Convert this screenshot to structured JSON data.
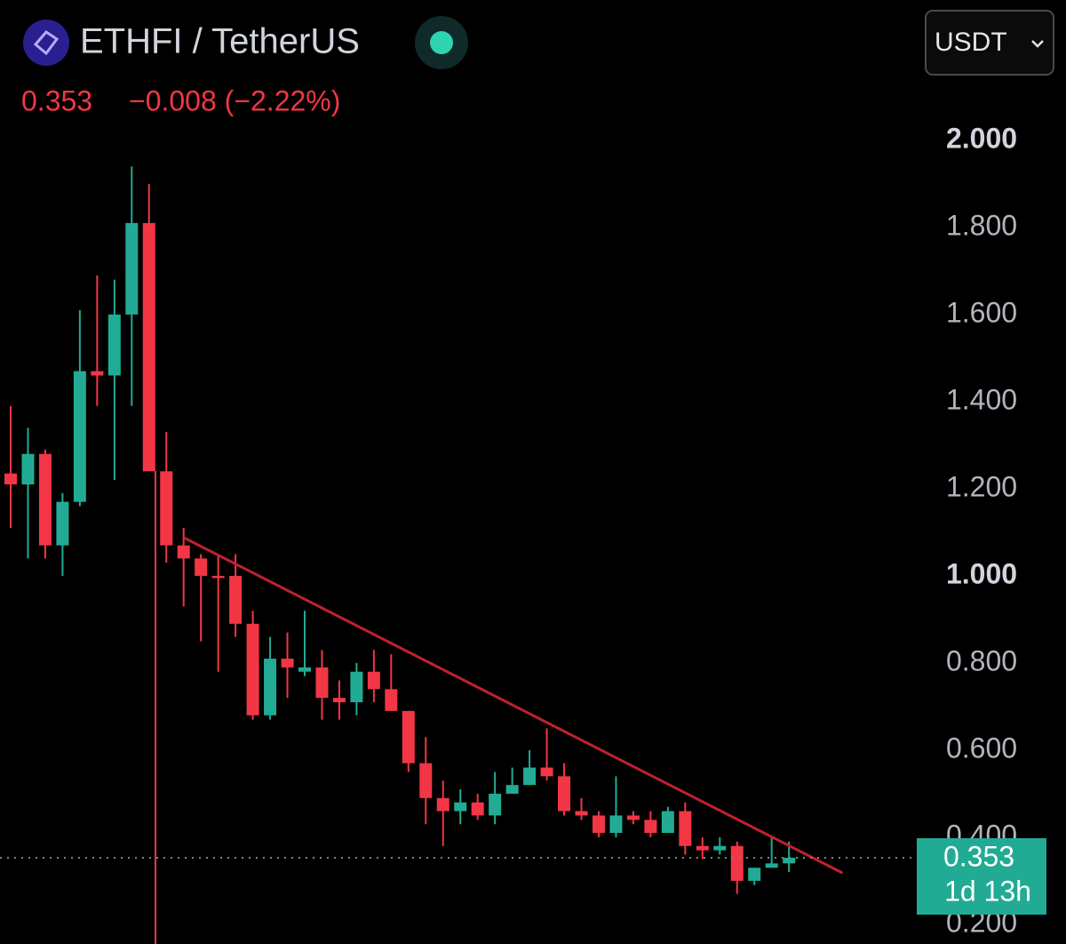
{
  "header": {
    "symbol": "ETHFI / TetherUS",
    "price": "0.353",
    "change": "−0.008 (−2.22%)",
    "currency": "USDT"
  },
  "chart_data": {
    "type": "candlestick",
    "up_color": "#22ab94",
    "down_color": "#f23645",
    "open": [
      1.235,
      1.21,
      1.28,
      1.07,
      1.17,
      1.47,
      1.46,
      1.6,
      1.81,
      1.24,
      1.07,
      1.04,
      1.0,
      1.0,
      0.89,
      0.68,
      0.81,
      0.78,
      0.79,
      0.72,
      0.71,
      0.78,
      0.74,
      0.69,
      0.57,
      0.49,
      0.46,
      0.48,
      0.45,
      0.5,
      0.52,
      0.56,
      0.54,
      0.46,
      0.45,
      0.41,
      0.45,
      0.44,
      0.41,
      0.46,
      0.38,
      0.37,
      0.38,
      0.3,
      0.33,
      0.34
    ],
    "high": [
      1.39,
      1.34,
      1.29,
      1.19,
      1.61,
      1.69,
      1.68,
      1.94,
      1.9,
      1.33,
      1.11,
      1.05,
      1.05,
      1.05,
      0.92,
      0.86,
      0.87,
      0.92,
      0.83,
      0.76,
      0.8,
      0.83,
      0.82,
      0.69,
      0.63,
      0.53,
      0.51,
      0.5,
      0.55,
      0.56,
      0.6,
      0.65,
      0.57,
      0.49,
      0.46,
      0.54,
      0.46,
      0.46,
      0.47,
      0.48,
      0.4,
      0.4,
      0.39,
      0.33,
      0.4,
      0.39
    ],
    "low": [
      1.11,
      1.04,
      1.04,
      1.0,
      1.16,
      1.39,
      1.22,
      1.39,
      1.24,
      1.03,
      0.93,
      0.85,
      0.78,
      0.86,
      0.67,
      0.67,
      0.72,
      0.77,
      0.67,
      0.67,
      0.68,
      0.71,
      0.69,
      0.55,
      0.43,
      0.38,
      0.43,
      0.44,
      0.43,
      0.5,
      0.52,
      0.53,
      0.45,
      0.44,
      0.4,
      0.4,
      0.43,
      0.4,
      0.41,
      0.36,
      0.35,
      0.36,
      0.27,
      0.29,
      0.33,
      0.32
    ],
    "close": [
      1.21,
      1.28,
      1.07,
      1.17,
      1.47,
      1.46,
      1.6,
      1.81,
      1.24,
      1.07,
      1.04,
      1.0,
      0.995,
      0.89,
      0.68,
      0.81,
      0.79,
      0.79,
      0.72,
      0.71,
      0.78,
      0.74,
      0.69,
      0.57,
      0.49,
      0.46,
      0.48,
      0.45,
      0.5,
      0.52,
      0.56,
      0.54,
      0.46,
      0.45,
      0.41,
      0.45,
      0.44,
      0.41,
      0.46,
      0.38,
      0.37,
      0.38,
      0.3,
      0.33,
      0.34,
      0.353
    ],
    "ylim": [
      0.155,
      2.322
    ],
    "yticks": [
      {
        "value": 0.2,
        "label": "0.200"
      },
      {
        "value": 0.4,
        "label": "0.400"
      },
      {
        "value": 0.6,
        "label": "0.600"
      },
      {
        "value": 0.8,
        "label": "0.800"
      },
      {
        "value": 1.0,
        "label": "1.000"
      },
      {
        "value": 1.2,
        "label": "1.200"
      },
      {
        "value": 1.4,
        "label": "1.400"
      },
      {
        "value": 1.6,
        "label": "1.600"
      },
      {
        "value": 1.8,
        "label": "1.800"
      },
      {
        "value": 2.0,
        "label": "2.000"
      }
    ],
    "last_price": 0.353,
    "countdown": "1d 13h",
    "trendline": {
      "x": [
        10,
        48.1
      ],
      "y": [
        1.088,
        0.318
      ],
      "color": "#c0212e"
    }
  }
}
